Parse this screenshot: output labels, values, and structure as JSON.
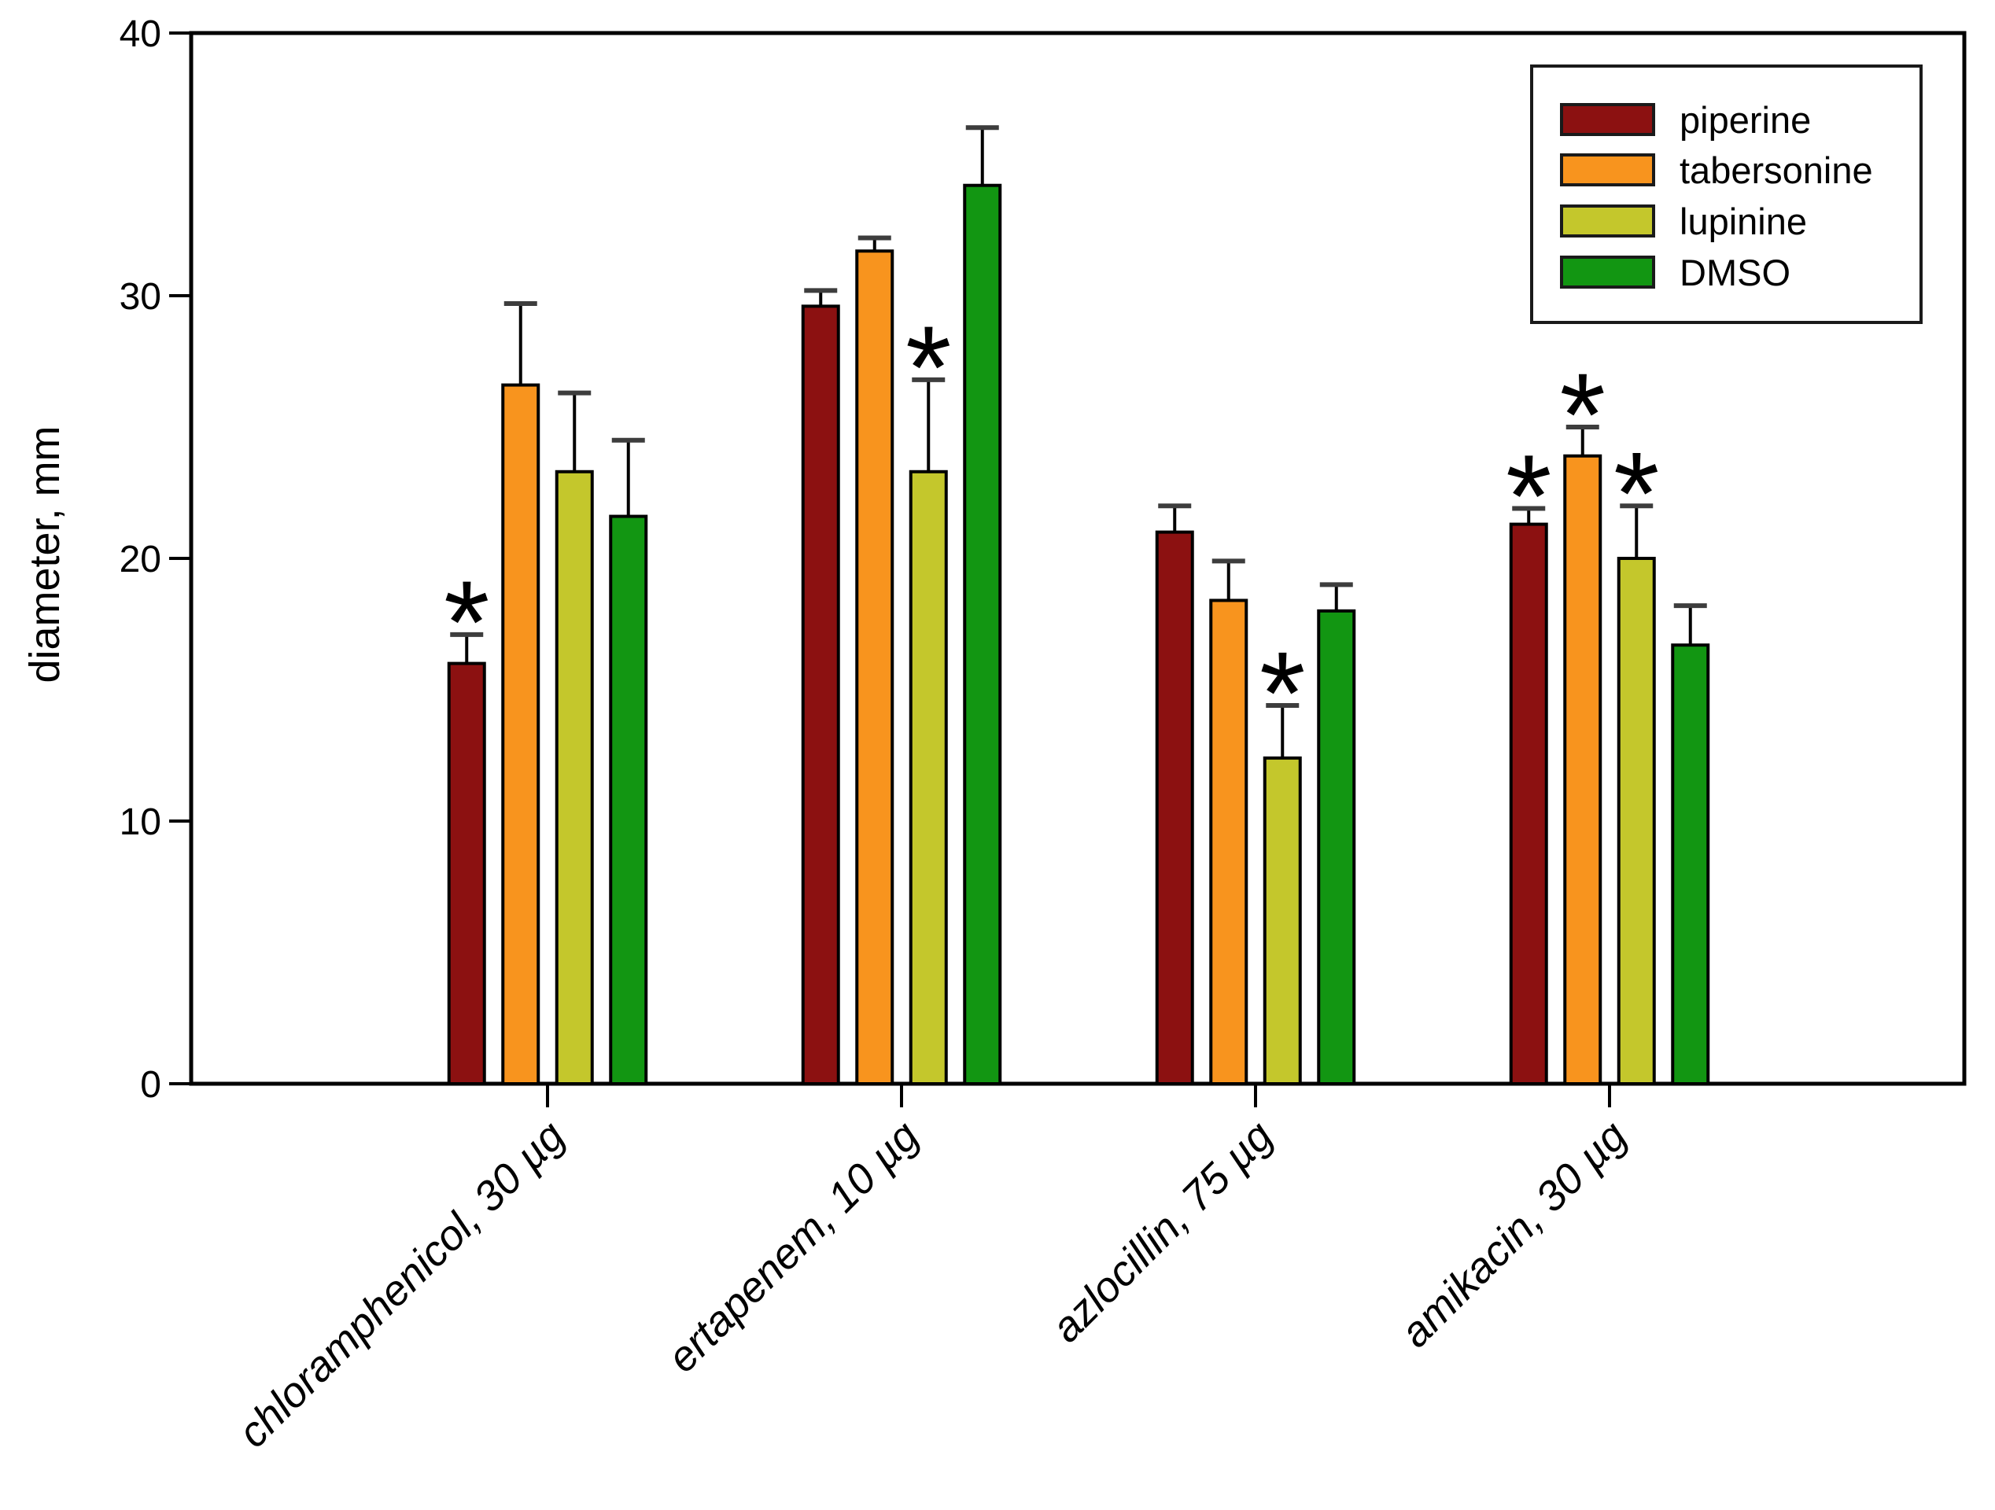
{
  "chart_data": {
    "type": "bar",
    "title": "",
    "xlabel": "",
    "ylabel": "diameter, mm",
    "ylim": [
      0,
      40
    ],
    "yticks": [
      40,
      30,
      20,
      10,
      0
    ],
    "grid": false,
    "legend_position": "top-right",
    "significance_marker": "*",
    "categories": [
      "chloramphenicol, 30 µg",
      "ertapenem, 10 µg",
      "azlocillin, 75 µg",
      "amikacin, 30 µg"
    ],
    "series": [
      {
        "name": "piperine",
        "color": "#8C1111",
        "values": [
          16.0,
          29.6,
          21.0,
          21.3
        ],
        "errors": [
          1.1,
          0.6,
          1.0,
          0.6
        ],
        "significant": [
          true,
          false,
          false,
          true
        ]
      },
      {
        "name": "tabersonine",
        "color": "#F8941E",
        "values": [
          26.6,
          31.7,
          18.4,
          23.9
        ],
        "errors": [
          3.1,
          0.5,
          1.5,
          1.1
        ],
        "significant": [
          false,
          false,
          false,
          true
        ]
      },
      {
        "name": "lupinine",
        "color": "#C4C72C",
        "values": [
          23.3,
          23.3,
          12.4,
          20.0
        ],
        "errors": [
          3.0,
          3.5,
          2.0,
          2.0
        ],
        "significant": [
          false,
          true,
          true,
          true
        ]
      },
      {
        "name": "DMSO",
        "color": "#129612",
        "values": [
          21.6,
          34.2,
          18.0,
          16.7
        ],
        "errors": [
          2.9,
          2.2,
          1.0,
          1.5
        ],
        "significant": [
          false,
          false,
          false,
          false
        ]
      }
    ],
    "colors": {
      "axis": "#000000",
      "error_cap": "#3d3d3d",
      "background": "#ffffff"
    }
  }
}
